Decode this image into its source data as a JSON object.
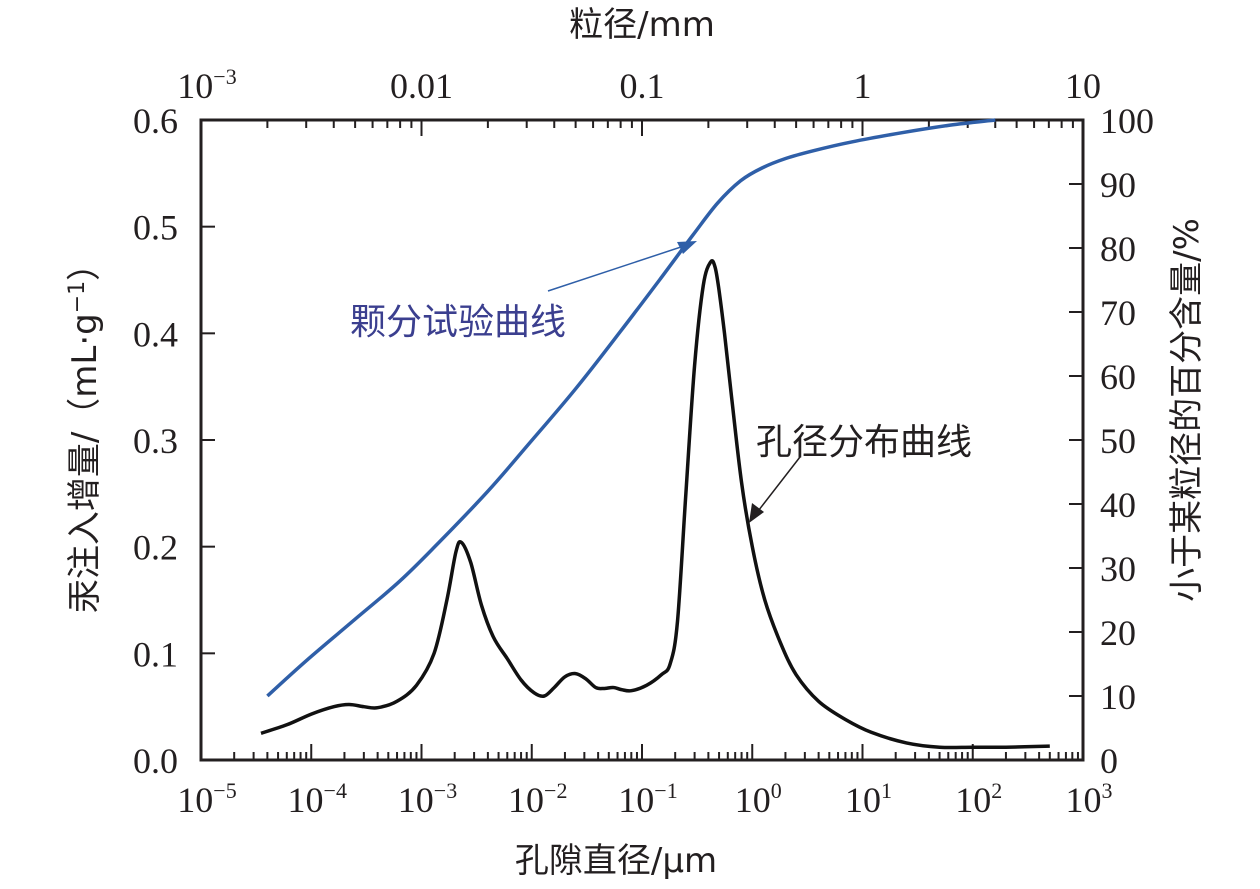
{
  "chart_data": {
    "type": "line",
    "title": "",
    "colors": {
      "axis": "#231f20",
      "grading_curve": "#2f5fa8",
      "pore_curve": "#111111",
      "grading_label": "#3b3f8f"
    },
    "x_bottom": {
      "label": "孔隙直径/μm",
      "scale": "log",
      "range": [
        1e-05,
        1000
      ],
      "ticks": [
        {
          "base": "10",
          "exp": "−5"
        },
        {
          "base": "10",
          "exp": "−4"
        },
        {
          "base": "10",
          "exp": "−3"
        },
        {
          "base": "10",
          "exp": "−2"
        },
        {
          "base": "10",
          "exp": "−1"
        },
        {
          "base": "10",
          "exp": "0"
        },
        {
          "base": "10",
          "exp": "1"
        },
        {
          "base": "10",
          "exp": "2"
        },
        {
          "base": "10",
          "exp": "3"
        }
      ]
    },
    "x_top": {
      "label": "粒径/mm",
      "scale": "log",
      "range": [
        0.001,
        10
      ],
      "ticks": [
        {
          "base": "10",
          "exp": "−3"
        },
        {
          "base": "0.01",
          "exp": ""
        },
        {
          "base": "0.1",
          "exp": ""
        },
        {
          "base": "1",
          "exp": ""
        },
        {
          "base": "10",
          "exp": ""
        }
      ]
    },
    "y_left": {
      "label": "汞注入增量/（mL·g",
      "label_sup": "−1",
      "label_close": "）",
      "range": [
        0,
        0.6
      ],
      "ticks": [
        "0.0",
        "0.1",
        "0.2",
        "0.3",
        "0.4",
        "0.5",
        "0.6"
      ]
    },
    "y_right": {
      "label": "小于某粒径的百分含量/%",
      "range": [
        0,
        100
      ],
      "ticks": [
        "0",
        "10",
        "20",
        "30",
        "40",
        "50",
        "60",
        "70",
        "80",
        "90",
        "100"
      ]
    },
    "series": [
      {
        "name": "孔径分布曲线",
        "axis": "bottom-left",
        "x_um": [
          3.5e-05,
          6e-05,
          0.0001,
          0.00016,
          0.00022,
          0.0003,
          0.0004,
          0.0006,
          0.0009,
          0.0013,
          0.0017,
          0.00205,
          0.0023,
          0.0028,
          0.0035,
          0.0045,
          0.006,
          0.008,
          0.0105,
          0.013,
          0.016,
          0.02,
          0.025,
          0.031,
          0.038,
          0.045,
          0.055,
          0.065,
          0.08,
          0.11,
          0.15,
          0.18,
          0.21,
          0.25,
          0.3,
          0.36,
          0.42,
          0.46,
          0.5,
          0.56,
          0.65,
          0.8,
          1.0,
          1.3,
          1.8,
          2.5,
          4,
          7,
          12,
          25,
          50,
          100,
          200,
          500
        ],
        "y": [
          0.025,
          0.033,
          0.043,
          0.05,
          0.052,
          0.05,
          0.049,
          0.055,
          0.07,
          0.1,
          0.15,
          0.195,
          0.204,
          0.185,
          0.145,
          0.115,
          0.095,
          0.075,
          0.063,
          0.06,
          0.068,
          0.078,
          0.081,
          0.076,
          0.068,
          0.067,
          0.068,
          0.066,
          0.065,
          0.07,
          0.08,
          0.09,
          0.13,
          0.25,
          0.37,
          0.445,
          0.467,
          0.462,
          0.44,
          0.4,
          0.34,
          0.26,
          0.2,
          0.15,
          0.11,
          0.08,
          0.055,
          0.038,
          0.026,
          0.016,
          0.012,
          0.012,
          0.012,
          0.013
        ]
      },
      {
        "name": "颗分试验曲线",
        "axis": "top-right",
        "x_mm": [
          0.002,
          0.003,
          0.005,
          0.008,
          0.012,
          0.02,
          0.03,
          0.05,
          0.08,
          0.12,
          0.17,
          0.22,
          0.28,
          0.35,
          0.45,
          0.6,
          0.9,
          1.5,
          2.5,
          4
        ],
        "y_percent": [
          10,
          15.5,
          22,
          28,
          34,
          42,
          49,
          58,
          67,
          75,
          82,
          87,
          90.5,
          92.5,
          94,
          95.2,
          96.6,
          98,
          99.2,
          100
        ]
      }
    ],
    "annotations": [
      {
        "text": "颗分试验曲线",
        "points_to": "颗分试验曲线",
        "position": "center-left"
      },
      {
        "text": "孔径分布曲线",
        "points_to": "孔径分布曲线",
        "position": "center-right"
      }
    ],
    "grid": false,
    "legend": "none"
  }
}
